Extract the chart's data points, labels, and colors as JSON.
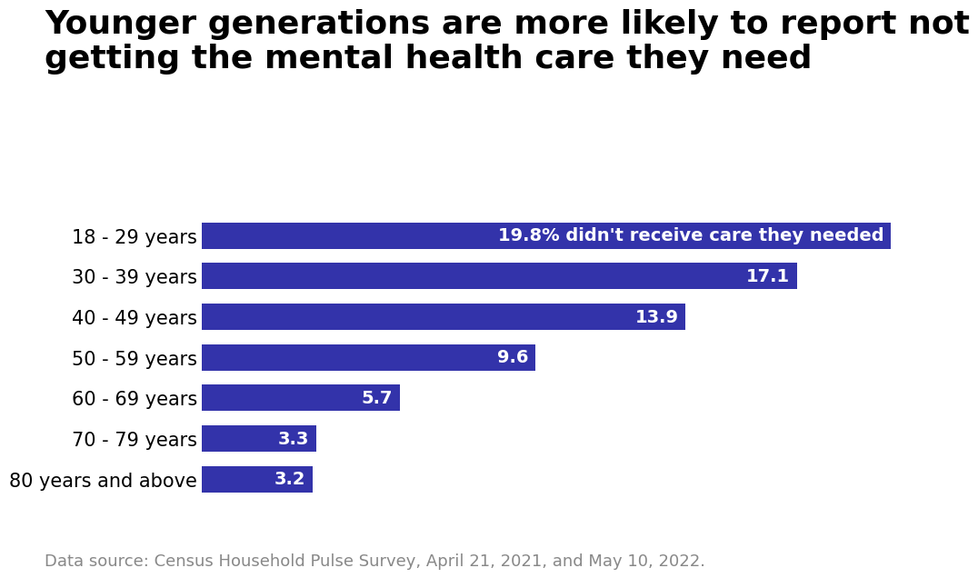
{
  "title": "Younger generations are more likely to report not\ngetting the mental health care they need",
  "categories": [
    "18 - 29 years",
    "30 - 39 years",
    "40 - 49 years",
    "50 - 59 years",
    "60 - 69 years",
    "70 - 79 years",
    "80 years and above"
  ],
  "values": [
    19.8,
    17.1,
    13.9,
    9.6,
    5.7,
    3.3,
    3.2
  ],
  "bar_color": "#3333aa",
  "label_color": "#ffffff",
  "title_color": "#000000",
  "background_color": "#ffffff",
  "footnote": "Data source: Census Household Pulse Survey, April 21, 2021, and May 10, 2022.",
  "bar_labels": [
    "19.8% didn't receive care they needed",
    "17.1",
    "13.9",
    "9.6",
    "5.7",
    "3.3",
    "3.2"
  ],
  "title_fontsize": 26,
  "label_fontsize": 14,
  "footnote_fontsize": 13,
  "ytick_fontsize": 15,
  "xlim": [
    0,
    22
  ],
  "footnote_color": "#888888"
}
